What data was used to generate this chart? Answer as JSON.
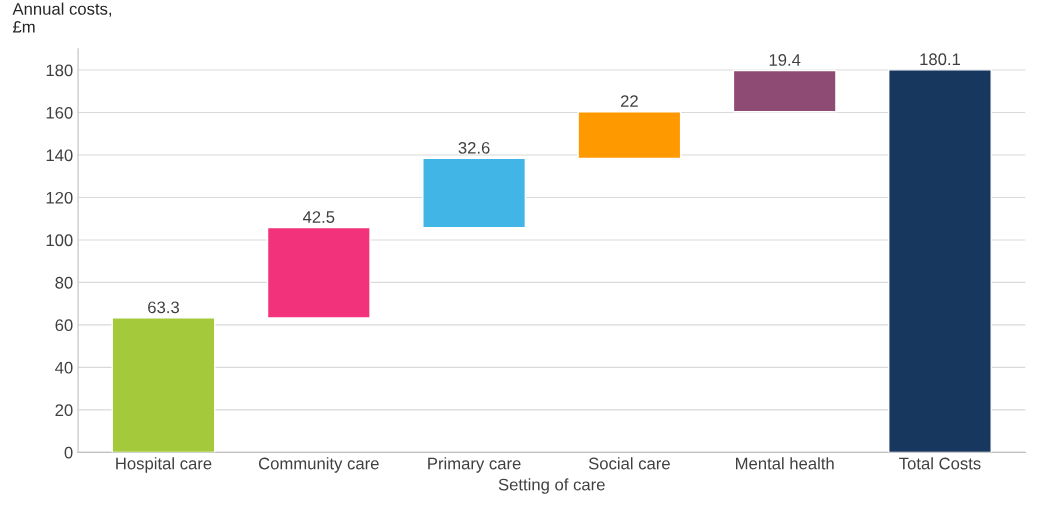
{
  "chart_data": {
    "type": "bar",
    "ylabel": "Annual costs,\n£m",
    "xlabel": "Setting of care",
    "categories": [
      "Hospital care",
      "Community care",
      "Primary care",
      "Social care",
      "Mental health",
      "Total Costs"
    ],
    "values": [
      63.3,
      42.5,
      32.6,
      22,
      19.4,
      180.1
    ],
    "base": [
      0,
      63.3,
      105.8,
      138.4,
      160.4,
      0
    ],
    "colors": [
      "#a4c93a",
      "#f2327a",
      "#41b5e5",
      "#ff9900",
      "#8e4b73",
      "#17375e"
    ],
    "ylim": [
      0,
      190
    ],
    "yticks": [
      0,
      20,
      40,
      60,
      80,
      100,
      120,
      140,
      160,
      180
    ],
    "grid": "y",
    "data_labels": true
  }
}
